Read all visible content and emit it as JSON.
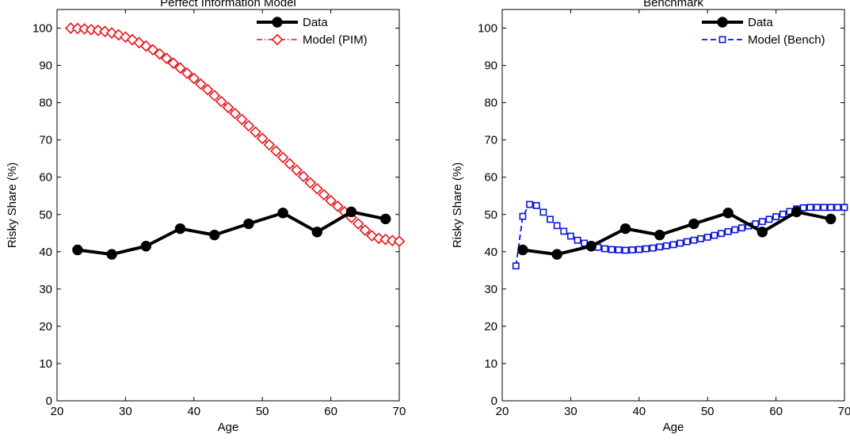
{
  "chart_data": [
    {
      "type": "line",
      "title": "Perfect Information Model",
      "xlabel": "Age",
      "ylabel": "Risky Share (%)",
      "xlim": [
        20,
        70
      ],
      "ylim": [
        0,
        105
      ],
      "xticks": [
        20,
        30,
        40,
        50,
        60,
        70
      ],
      "yticks": [
        0,
        10,
        20,
        30,
        40,
        50,
        60,
        70,
        80,
        90,
        100
      ],
      "legend_position": "top-right",
      "grid": false,
      "series": [
        {
          "name": "Data",
          "style": "solid-circle",
          "color": "#000000",
          "x": [
            23,
            28,
            33,
            38,
            43,
            48,
            53,
            58,
            63,
            68
          ],
          "y": [
            40.5,
            39.3,
            41.5,
            46.2,
            44.5,
            47.5,
            50.4,
            45.3,
            50.7,
            48.8
          ]
        },
        {
          "name": "Model (PIM)",
          "style": "dashdot-diamond",
          "color": "#e8141b",
          "x": [
            22,
            23,
            24,
            25,
            26,
            27,
            28,
            29,
            30,
            31,
            32,
            33,
            34,
            35,
            36,
            37,
            38,
            39,
            40,
            41,
            42,
            43,
            44,
            45,
            46,
            47,
            48,
            49,
            50,
            51,
            52,
            53,
            54,
            55,
            56,
            57,
            58,
            59,
            60,
            61,
            62,
            63,
            64,
            65,
            66,
            67,
            68,
            69,
            70
          ],
          "y": [
            100.0,
            99.9,
            99.8,
            99.6,
            99.4,
            99.1,
            98.7,
            98.2,
            97.6,
            96.9,
            96.1,
            95.2,
            94.2,
            93.1,
            91.9,
            90.6,
            89.3,
            87.9,
            86.5,
            85.0,
            83.5,
            81.9,
            80.3,
            78.7,
            77.1,
            75.5,
            73.8,
            72.1,
            70.4,
            68.7,
            67.0,
            65.3,
            63.6,
            61.9,
            60.2,
            58.5,
            56.9,
            55.3,
            53.7,
            52.2,
            50.7,
            49.2,
            47.5,
            45.8,
            44.3,
            43.6,
            43.3,
            43.0,
            42.8
          ]
        }
      ]
    },
    {
      "type": "line",
      "title": "Benchmark",
      "xlabel": "Age",
      "ylabel": "Risky Share (%)",
      "xlim": [
        20,
        70
      ],
      "ylim": [
        0,
        105
      ],
      "xticks": [
        20,
        30,
        40,
        50,
        60,
        70
      ],
      "yticks": [
        0,
        10,
        20,
        30,
        40,
        50,
        60,
        70,
        80,
        90,
        100
      ],
      "legend_position": "top-right",
      "grid": false,
      "series": [
        {
          "name": "Data",
          "style": "solid-circle",
          "color": "#000000",
          "x": [
            23,
            28,
            33,
            38,
            43,
            48,
            53,
            58,
            63,
            68
          ],
          "y": [
            40.5,
            39.3,
            41.5,
            46.2,
            44.5,
            47.5,
            50.4,
            45.3,
            50.7,
            48.8
          ]
        },
        {
          "name": "Model (Bench)",
          "style": "dashed-square",
          "color": "#0a14d8",
          "x": [
            22,
            23,
            24,
            25,
            26,
            27,
            28,
            29,
            30,
            31,
            32,
            33,
            34,
            35,
            36,
            37,
            38,
            39,
            40,
            41,
            42,
            43,
            44,
            45,
            46,
            47,
            48,
            49,
            50,
            51,
            52,
            53,
            54,
            55,
            56,
            57,
            58,
            59,
            60,
            61,
            62,
            63,
            64,
            65,
            66,
            67,
            68,
            69,
            70
          ],
          "y": [
            36.2,
            49.5,
            52.7,
            52.4,
            50.6,
            48.7,
            47.0,
            45.5,
            44.2,
            43.1,
            42.3,
            41.7,
            41.2,
            40.8,
            40.6,
            40.5,
            40.4,
            40.5,
            40.6,
            40.8,
            41.0,
            41.3,
            41.6,
            41.9,
            42.3,
            42.7,
            43.1,
            43.5,
            43.9,
            44.4,
            44.9,
            45.4,
            45.9,
            46.4,
            46.9,
            47.5,
            48.1,
            48.7,
            49.4,
            50.1,
            50.8,
            51.5,
            51.8,
            51.9,
            51.9,
            51.9,
            51.9,
            51.9,
            51.9
          ]
        }
      ]
    }
  ]
}
